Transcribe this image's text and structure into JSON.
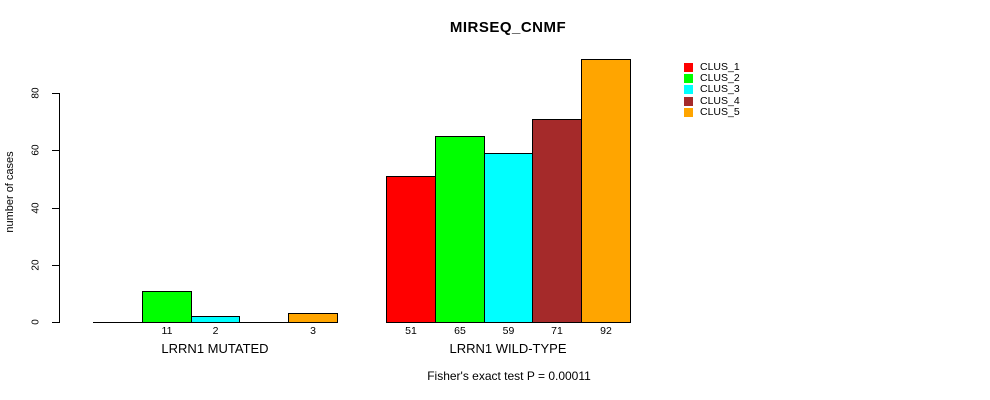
{
  "chart_data": {
    "type": "bar",
    "title": "MIRSEQ_CNMF",
    "ylabel": "number of cases",
    "xlabel": "",
    "ylim": [
      0,
      80
    ],
    "yticks": [
      0,
      20,
      40,
      60,
      80
    ],
    "grid": false,
    "legend_position": "top-right",
    "categories": [
      "LRRN1 MUTATED",
      "LRRN1 WILD-TYPE"
    ],
    "series": [
      {
        "name": "CLUS_1",
        "color": "#ff0000",
        "values": [
          0,
          51
        ]
      },
      {
        "name": "CLUS_2",
        "color": "#00ff00",
        "values": [
          11,
          65
        ]
      },
      {
        "name": "CLUS_3",
        "color": "#00ffff",
        "values": [
          2,
          59
        ]
      },
      {
        "name": "CLUS_4",
        "color": "#a52a2a",
        "values": [
          0,
          71
        ]
      },
      {
        "name": "CLUS_5",
        "color": "#ffa500",
        "values": [
          3,
          92
        ]
      }
    ],
    "bar_value_labels": {
      "LRRN1 MUTATED": [
        null,
        11,
        2,
        null,
        3
      ],
      "LRRN1 WILD-TYPE": [
        51,
        65,
        59,
        71,
        92
      ]
    },
    "annotation": "Fisher's exact test P = 0.00011"
  }
}
